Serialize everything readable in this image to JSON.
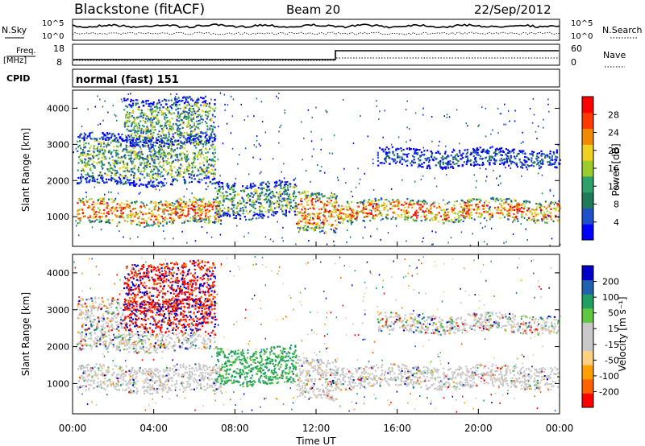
{
  "header": {
    "title": "Blackstone (fitACF)",
    "beam": "Beam 20",
    "date": "22/Sep/2012"
  },
  "summary_panels": {
    "nsky_label": "N.Sky",
    "nsky_ticks": [
      "10^5",
      "10^0"
    ],
    "nsearch_label": "N.Search",
    "nsearch_ticks": [
      "10^5",
      "10^0"
    ],
    "freq_label": "Freq.",
    "freq_unit": "[MHz]",
    "freq_ticks": [
      "18",
      "8"
    ],
    "nave_label": "Nave",
    "nave_ticks": [
      "60",
      "0"
    ],
    "cpid_label": "CPID",
    "cpid_value": "normal (fast) 151"
  },
  "colors": {
    "power_scale": [
      "#0000ff",
      "#2050c8",
      "#1f7a5a",
      "#2ea06a",
      "#9ccc2c",
      "#f0d020",
      "#f08a00",
      "#ff3a00",
      "#ff0000"
    ],
    "velocity_scale": [
      "#ff0000",
      "#ff6000",
      "#ffa000",
      "#ffd080",
      "#c8c8c8",
      "#c8c8c8",
      "#60c840",
      "#20a060",
      "#2060b0",
      "#0000c8"
    ]
  },
  "chart_data": [
    {
      "type": "heatmap",
      "name": "power",
      "ylabel": "Slant Range [km]",
      "ylim": [
        180,
        4500
      ],
      "yticks": [
        "1000",
        "2000",
        "3000",
        "4000"
      ],
      "xlim_hours": [
        0,
        24
      ],
      "colorbar_label": "Power [dB]",
      "colorbar_ticks": [
        "4",
        "8",
        "12",
        "16",
        "20",
        "24",
        "28"
      ],
      "colorbar_range": [
        0,
        32
      ],
      "echo_bands": [
        {
          "t": [
            0.2,
            7.3
          ],
          "range": [
            800,
            1500
          ],
          "value": "high"
        },
        {
          "t": [
            0.2,
            7.0
          ],
          "range": [
            1900,
            3300
          ],
          "value": "mid"
        },
        {
          "t": [
            2.5,
            7.0
          ],
          "range": [
            3000,
            4300
          ],
          "value": "mid"
        },
        {
          "t": [
            7.0,
            11.0
          ],
          "range": [
            1000,
            2000
          ],
          "value": "mid"
        },
        {
          "t": [
            11.0,
            13.0
          ],
          "range": [
            600,
            1700
          ],
          "value": "high"
        },
        {
          "t": [
            13.0,
            24.0
          ],
          "range": [
            900,
            1500
          ],
          "value": "high"
        },
        {
          "t": [
            15.0,
            24.0
          ],
          "range": [
            2400,
            2900
          ],
          "value": "low"
        }
      ]
    },
    {
      "type": "heatmap",
      "name": "velocity",
      "ylabel": "Slant Range [km]",
      "ylim": [
        180,
        4500
      ],
      "yticks": [
        "1000",
        "2000",
        "3000",
        "4000"
      ],
      "xlabel": "Time UT",
      "xticks": [
        "00:00",
        "04:00",
        "08:00",
        "12:00",
        "16:00",
        "20:00",
        "00:00"
      ],
      "colorbar_label": "Velocity [m s⁻¹]",
      "colorbar_ticks": [
        "200",
        "100",
        "50",
        "15",
        "-15",
        "-50",
        "-100",
        "-200"
      ],
      "colorbar_range": [
        -250,
        250
      ]
    }
  ]
}
